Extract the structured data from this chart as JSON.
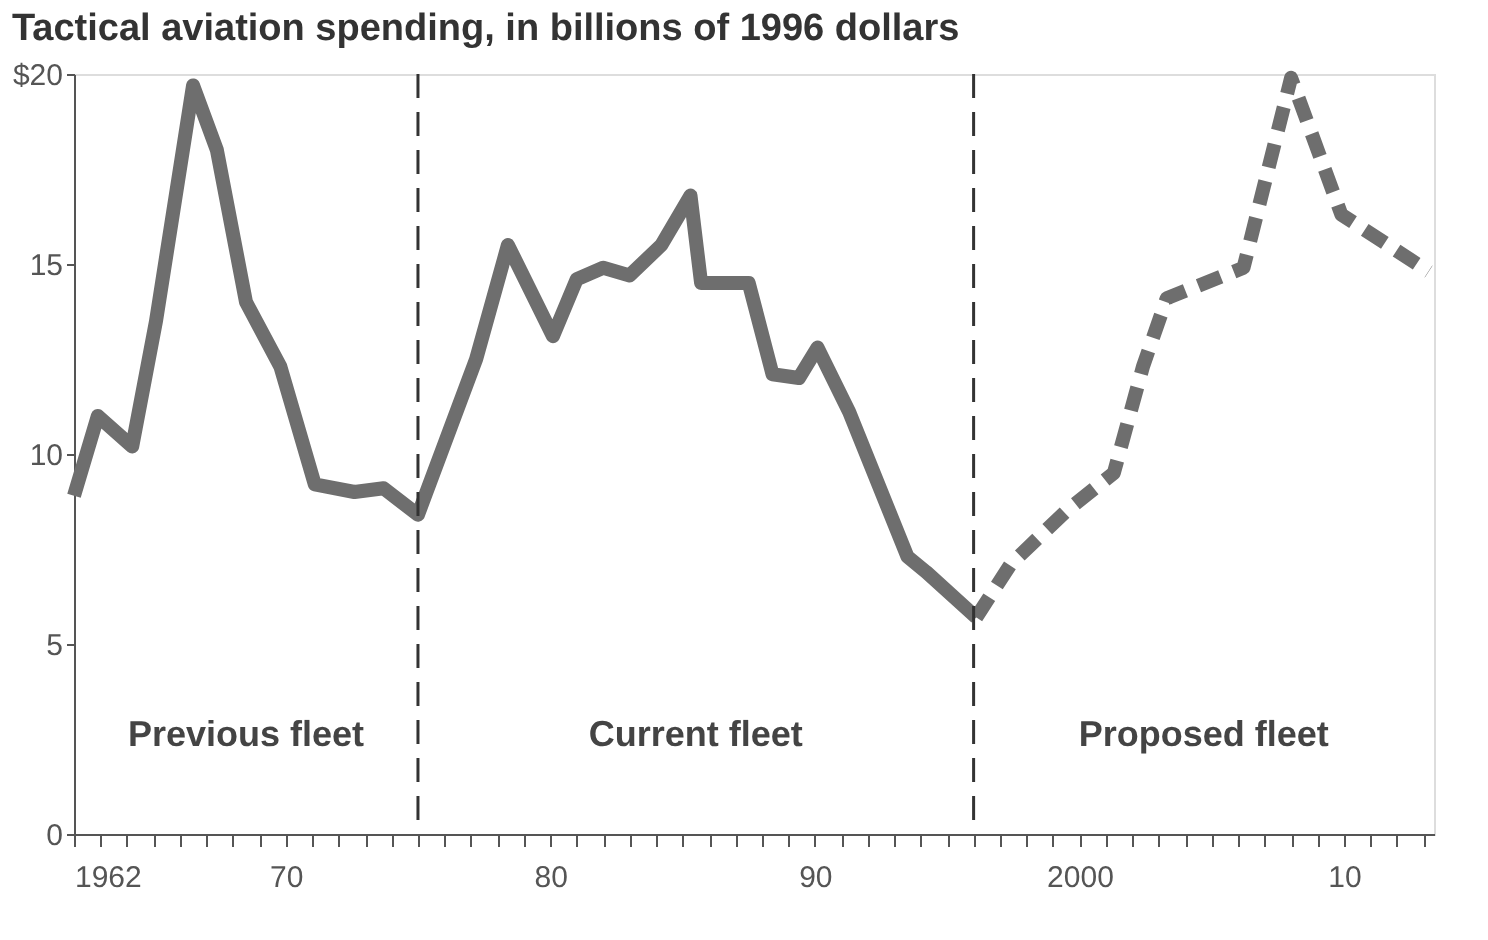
{
  "chart_data": {
    "type": "line",
    "title": "Tactical aviation spending, in billions of 1996 dollars",
    "xlim": [
      1962,
      2013.4
    ],
    "ylim": [
      0,
      20
    ],
    "xticks": [
      {
        "value": 1962,
        "label": "1962"
      },
      {
        "value": 1963,
        "label": null
      },
      {
        "value": 1964,
        "label": null
      },
      {
        "value": 1965,
        "label": null
      },
      {
        "value": 1966,
        "label": null
      },
      {
        "value": 1967,
        "label": null
      },
      {
        "value": 1968,
        "label": null
      },
      {
        "value": 1969,
        "label": null
      },
      {
        "value": 1970,
        "label": "70"
      },
      {
        "value": 1971,
        "label": null
      },
      {
        "value": 1972,
        "label": null
      },
      {
        "value": 1973,
        "label": null
      },
      {
        "value": 1974,
        "label": null
      },
      {
        "value": 1975,
        "label": null
      },
      {
        "value": 1976,
        "label": null
      },
      {
        "value": 1977,
        "label": null
      },
      {
        "value": 1978,
        "label": null
      },
      {
        "value": 1979,
        "label": null
      },
      {
        "value": 1980,
        "label": "80"
      },
      {
        "value": 1981,
        "label": null
      },
      {
        "value": 1982,
        "label": null
      },
      {
        "value": 1983,
        "label": null
      },
      {
        "value": 1984,
        "label": null
      },
      {
        "value": 1985,
        "label": null
      },
      {
        "value": 1986,
        "label": null
      },
      {
        "value": 1987,
        "label": null
      },
      {
        "value": 1988,
        "label": null
      },
      {
        "value": 1989,
        "label": null
      },
      {
        "value": 1990,
        "label": "90"
      },
      {
        "value": 1991,
        "label": null
      },
      {
        "value": 1992,
        "label": null
      },
      {
        "value": 1993,
        "label": null
      },
      {
        "value": 1994,
        "label": null
      },
      {
        "value": 1995,
        "label": null
      },
      {
        "value": 1996,
        "label": null
      },
      {
        "value": 1997,
        "label": null
      },
      {
        "value": 1998,
        "label": null
      },
      {
        "value": 1999,
        "label": null
      },
      {
        "value": 2000,
        "label": "2000"
      },
      {
        "value": 2001,
        "label": null
      },
      {
        "value": 2002,
        "label": null
      },
      {
        "value": 2003,
        "label": null
      },
      {
        "value": 2004,
        "label": null
      },
      {
        "value": 2005,
        "label": null
      },
      {
        "value": 2006,
        "label": null
      },
      {
        "value": 2007,
        "label": null
      },
      {
        "value": 2008,
        "label": null
      },
      {
        "value": 2009,
        "label": null
      },
      {
        "value": 2010,
        "label": "10"
      },
      {
        "value": 2011,
        "label": null
      },
      {
        "value": 2012,
        "label": null
      },
      {
        "value": 2013,
        "label": null
      }
    ],
    "yticks": [
      0,
      5,
      10,
      15,
      {
        "value": 20,
        "label": "$20"
      }
    ],
    "grid": false,
    "series": [
      {
        "color": "#6e6e6e",
        "line_style": "solid",
        "x": [
          1962,
          1962.9,
          1964.2,
          1965.1,
          1966.5,
          1967.4,
          1968.5,
          1969.8,
          1971.1,
          1972.6,
          1973.7,
          1975.0,
          1977.2,
          1978.4,
          1980.1,
          1981.0,
          1982.0,
          1983.0,
          1984.2,
          1985.3,
          1985.7,
          1987.5,
          1988.4,
          1989.4,
          1990.1,
          1991.3,
          1993.5,
          1994.2,
          1996.1
        ],
        "values": [
          8.9,
          11.0,
          10.2,
          13.5,
          19.7,
          18.0,
          14.0,
          12.3,
          9.2,
          9.0,
          9.1,
          8.4,
          12.5,
          15.5,
          13.1,
          14.6,
          14.9,
          14.7,
          15.5,
          16.8,
          14.5,
          14.5,
          12.1,
          12.0,
          12.8,
          11.1,
          7.3,
          6.9,
          5.7
        ]
      },
      {
        "color": "#6e6e6e",
        "line_style": "dashed",
        "x": [
          1996.1,
          1997.4,
          1999.5,
          2001.3,
          2002.4,
          2003.3,
          2006.2,
          2008.0,
          2009.9,
          2013.2
        ],
        "values": [
          5.7,
          7.1,
          8.5,
          9.5,
          12.3,
          14.1,
          14.9,
          19.9,
          16.3,
          14.8
        ]
      }
    ],
    "ref_lines": [
      {
        "axis": "x",
        "value": 1975,
        "line_style": "dashed",
        "color": "#333333"
      },
      {
        "axis": "x",
        "value": 1996,
        "line_style": "dashed",
        "color": "#333333"
      }
    ],
    "annotations": [
      "Previous fleet",
      "Current fleet",
      "Proposed fleet"
    ]
  }
}
